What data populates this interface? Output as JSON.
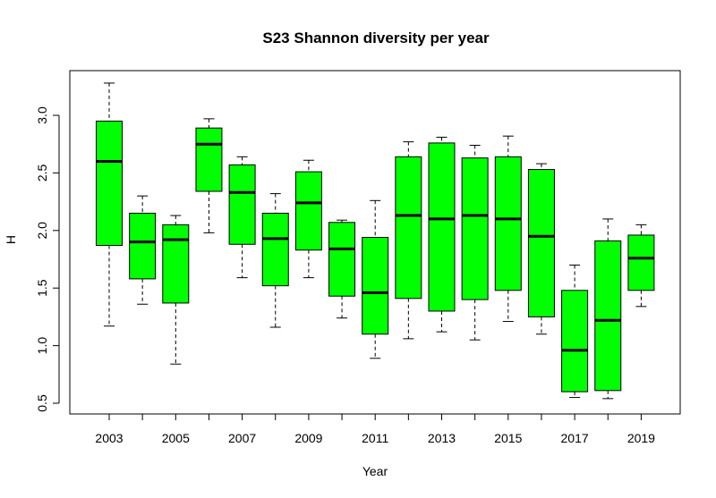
{
  "chart_data": {
    "type": "boxplot",
    "title": "S23 Shannon diversity per year",
    "xlabel": "Year",
    "ylabel": "H",
    "ylim": [
      0.5,
      3.3
    ],
    "y_ticks": [
      "0.5",
      "1.0",
      "1.5",
      "2.0",
      "2.5",
      "3.0"
    ],
    "categories": [
      "2003",
      "2004",
      "2005",
      "2006",
      "2007",
      "2008",
      "2009",
      "2010",
      "2011",
      "2012",
      "2013",
      "2014",
      "2015",
      "2016",
      "2017",
      "2018",
      "2019"
    ],
    "x_tick_labels": [
      "2003",
      "",
      "2005",
      "",
      "2007",
      "",
      "2009",
      "",
      "2011",
      "",
      "2013",
      "",
      "2015",
      "",
      "2017",
      "",
      "2019"
    ],
    "box_color": "#00ff00",
    "grid": false,
    "boxes": [
      {
        "year": "2003",
        "min": 1.17,
        "q1": 1.87,
        "median": 2.6,
        "q3": 2.95,
        "max": 3.28
      },
      {
        "year": "2004",
        "min": 1.36,
        "q1": 1.58,
        "median": 1.9,
        "q3": 2.15,
        "max": 2.3
      },
      {
        "year": "2005",
        "min": 0.84,
        "q1": 1.37,
        "median": 1.92,
        "q3": 2.05,
        "max": 2.13
      },
      {
        "year": "2006",
        "min": 1.98,
        "q1": 2.34,
        "median": 2.75,
        "q3": 2.89,
        "max": 2.97
      },
      {
        "year": "2007",
        "min": 1.59,
        "q1": 1.88,
        "median": 2.33,
        "q3": 2.57,
        "max": 2.64
      },
      {
        "year": "2008",
        "min": 1.16,
        "q1": 1.52,
        "median": 1.93,
        "q3": 2.15,
        "max": 2.32
      },
      {
        "year": "2009",
        "min": 1.59,
        "q1": 1.83,
        "median": 2.24,
        "q3": 2.51,
        "max": 2.61
      },
      {
        "year": "2010",
        "min": 1.24,
        "q1": 1.43,
        "median": 1.84,
        "q3": 2.07,
        "max": 2.09
      },
      {
        "year": "2011",
        "min": 0.89,
        "q1": 1.1,
        "median": 1.46,
        "q3": 1.94,
        "max": 2.26
      },
      {
        "year": "2012",
        "min": 1.06,
        "q1": 1.41,
        "median": 2.13,
        "q3": 2.64,
        "max": 2.77
      },
      {
        "year": "2013",
        "min": 1.12,
        "q1": 1.3,
        "median": 2.1,
        "q3": 2.76,
        "max": 2.81
      },
      {
        "year": "2014",
        "min": 1.05,
        "q1": 1.4,
        "median": 2.13,
        "q3": 2.63,
        "max": 2.74
      },
      {
        "year": "2015",
        "min": 1.21,
        "q1": 1.48,
        "median": 2.1,
        "q3": 2.64,
        "max": 2.82
      },
      {
        "year": "2016",
        "min": 1.1,
        "q1": 1.25,
        "median": 1.95,
        "q3": 2.53,
        "max": 2.58
      },
      {
        "year": "2017",
        "min": 0.55,
        "q1": 0.6,
        "median": 0.96,
        "q3": 1.48,
        "max": 1.7
      },
      {
        "year": "2018",
        "min": 0.54,
        "q1": 0.61,
        "median": 1.22,
        "q3": 1.91,
        "max": 2.1
      },
      {
        "year": "2019",
        "min": 1.34,
        "q1": 1.48,
        "median": 1.76,
        "q3": 1.96,
        "max": 2.05
      }
    ]
  }
}
